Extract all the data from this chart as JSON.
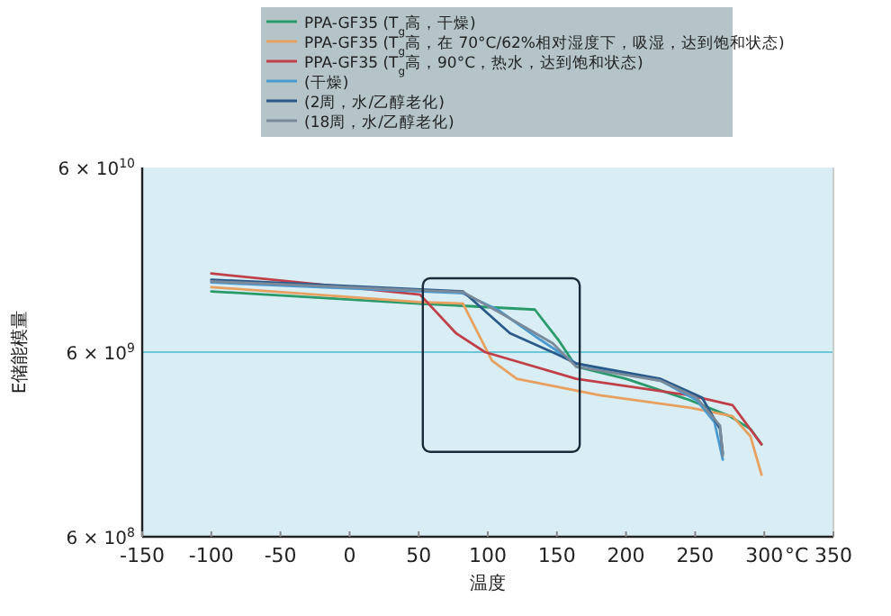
{
  "chart_data": {
    "type": "line",
    "xlabel": "温度",
    "ylabel": "E储能模量",
    "log": true,
    "xlim": [
      -150,
      350
    ],
    "xticks": [
      -150,
      -100,
      -50,
      0,
      50,
      100,
      150,
      200,
      250,
      300,
      350
    ],
    "ylim": [
      600000000.0,
      60000000000.0
    ],
    "yticks": [
      {
        "value": 600000000.0,
        "label": "6 × 10$^{8}$"
      },
      {
        "value": 6000000000.0,
        "label": "6 × 10$^{9}$"
      },
      {
        "value": 60000000000.0,
        "label": "6 × 10$^{10}$"
      }
    ],
    "ref_lines": [
      {
        "axis": "y",
        "value": 6000000000.0,
        "label": null,
        "color": "#6cc8d8"
      }
    ],
    "legend": "top",
    "annotations": [
      "°C"
    ],
    "series": [
      {
        "name": "PPA-GF35 (T$_{g}$高，干燥)",
        "color": "#2a9a6a",
        "x": [
          -100,
          50,
          134,
          151,
          164,
          200,
          246,
          275,
          290,
          298
        ],
        "values": [
          12800000000.0,
          11000000000.0,
          10200000000.0,
          7000000000.0,
          5000000000.0,
          4300000000.0,
          3300000000.0,
          2700000000.0,
          2300000000.0,
          1900000000.0
        ]
      },
      {
        "name": "PPA-GF35 (T$_{g}$高，在 70°C/62%相对湿度下，吸湿，达到饱和状态)",
        "color": "#e8a060",
        "x": [
          -100,
          50,
          82,
          103,
          121,
          181,
          246,
          277,
          290,
          298
        ],
        "values": [
          13500000000.0,
          11200000000.0,
          11000000000.0,
          5400000000.0,
          4300000000.0,
          3500000000.0,
          3000000000.0,
          2700000000.0,
          2100000000.0,
          1300000000.0
        ]
      },
      {
        "name": "PPA-GF35 (T$_{g}$高，90°C，热水，达到饱和状态)",
        "color": "#c0404a",
        "x": [
          -100,
          51,
          77,
          98,
          164,
          246,
          277,
          298
        ],
        "values": [
          16000000000.0,
          12300000000.0,
          7600000000.0,
          6000000000.0,
          4300000000.0,
          3500000000.0,
          3100000000.0,
          1900000000.0
        ]
      },
      {
        "name": "(干燥)",
        "color": "#4a9ad0",
        "x": [
          -100,
          82,
          107,
          138,
          164,
          225,
          251,
          264,
          270
        ],
        "values": [
          14300000000.0,
          12500000000.0,
          10200000000.0,
          7000000000.0,
          5200000000.0,
          4200000000.0,
          3300000000.0,
          2500000000.0,
          1570000000.0
        ]
      },
      {
        "name": "(2周，水/乙醇老化)",
        "color": "#2a5a8a",
        "x": [
          -100,
          82,
          116,
          151,
          164,
          225,
          255,
          268,
          270
        ],
        "values": [
          14800000000.0,
          12800000000.0,
          7600000000.0,
          5800000000.0,
          5200000000.0,
          4300000000.0,
          3400000000.0,
          2300000000.0,
          1700000000.0
        ]
      },
      {
        "name": "(18周，水/乙醇老化)",
        "color": "#7a8a9a",
        "x": [
          -100,
          82,
          112,
          147,
          164,
          225,
          251,
          268,
          270
        ],
        "values": [
          14500000000.0,
          12700000000.0,
          9500000000.0,
          6700000000.0,
          5000000000.0,
          4200000000.0,
          3400000000.0,
          2400000000.0,
          1650000000.0
        ]
      }
    ]
  }
}
